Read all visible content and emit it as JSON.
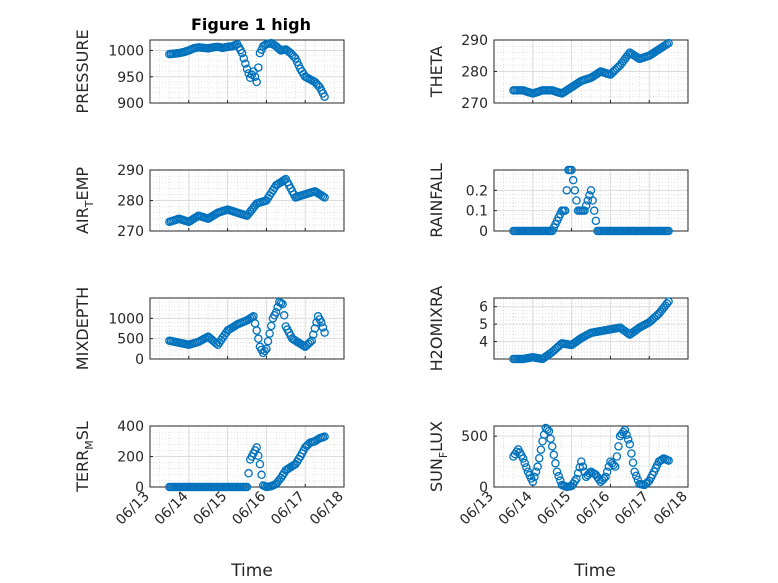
{
  "figure": {
    "title": "Figure 1 high",
    "marker_color": "#0072bd",
    "xlabel": "Time"
  },
  "chart_data": [
    {
      "type": "scatter",
      "ylabel": "PRESSURE",
      "ylim": [
        900,
        1020
      ],
      "yticks": [
        900,
        950,
        1000
      ],
      "xlim": [
        "2017-06-13",
        "2017-06-18"
      ],
      "xticks": [
        "06/13",
        "06/14",
        "06/15",
        "06/16",
        "06/17",
        "06/18"
      ],
      "minor_grid": true,
      "x": [
        "2017-06-13 12:00",
        "2017-06-13 15:00",
        "2017-06-13 18:00",
        "2017-06-13 21:00",
        "2017-06-14 00:00",
        "2017-06-14 03:00",
        "2017-06-14 06:00",
        "2017-06-14 09:00",
        "2017-06-14 12:00",
        "2017-06-14 15:00",
        "2017-06-14 18:00",
        "2017-06-14 21:00",
        "2017-06-15 00:00",
        "2017-06-15 03:00",
        "2017-06-15 06:00",
        "2017-06-15 09:00",
        "2017-06-15 12:00",
        "2017-06-15 14:00",
        "2017-06-15 16:00",
        "2017-06-15 18:00",
        "2017-06-15 20:00",
        "2017-06-15 22:00",
        "2017-06-16 00:00",
        "2017-06-16 03:00",
        "2017-06-16 06:00",
        "2017-06-16 09:00",
        "2017-06-16 12:00",
        "2017-06-16 15:00",
        "2017-06-16 18:00",
        "2017-06-16 21:00",
        "2017-06-17 00:00",
        "2017-06-17 03:00",
        "2017-06-17 06:00",
        "2017-06-17 09:00",
        "2017-06-17 12:00"
      ],
      "y": [
        993,
        994,
        995,
        997,
        1000,
        1004,
        1006,
        1005,
        1004,
        1006,
        1007,
        1005,
        1007,
        1008,
        1012,
        995,
        965,
        948,
        960,
        940,
        995,
        1008,
        1012,
        1014,
        1008,
        1000,
        1002,
        995,
        985,
        965,
        950,
        945,
        940,
        930,
        912
      ]
    },
    {
      "type": "scatter",
      "ylabel": "THETA",
      "ylim": [
        270,
        290
      ],
      "yticks": [
        270,
        280,
        290
      ],
      "xlim": [
        "2017-06-13",
        "2017-06-18"
      ],
      "xticks": [
        "06/13",
        "06/14",
        "06/15",
        "06/16",
        "06/17",
        "06/18"
      ],
      "minor_grid": true,
      "x": [
        "2017-06-13 12:00",
        "2017-06-13 18:00",
        "2017-06-14 00:00",
        "2017-06-14 06:00",
        "2017-06-14 12:00",
        "2017-06-14 18:00",
        "2017-06-15 00:00",
        "2017-06-15 06:00",
        "2017-06-15 12:00",
        "2017-06-15 18:00",
        "2017-06-16 00:00",
        "2017-06-16 06:00",
        "2017-06-16 12:00",
        "2017-06-16 18:00",
        "2017-06-17 00:00",
        "2017-06-17 06:00",
        "2017-06-17 12:00"
      ],
      "y": [
        274,
        274,
        273,
        274,
        274,
        273,
        275,
        277,
        278,
        280,
        279,
        282,
        286,
        284,
        285,
        287,
        289
      ]
    },
    {
      "type": "scatter",
      "ylabel": "AIR_TEMP",
      "ylim": [
        270,
        290
      ],
      "yticks": [
        270,
        280,
        290
      ],
      "xlim": [
        "2017-06-13",
        "2017-06-18"
      ],
      "xticks": [
        "06/13",
        "06/14",
        "06/15",
        "06/16",
        "06/17",
        "06/18"
      ],
      "minor_grid": true,
      "x": [
        "2017-06-13 12:00",
        "2017-06-13 18:00",
        "2017-06-14 00:00",
        "2017-06-14 06:00",
        "2017-06-14 12:00",
        "2017-06-14 18:00",
        "2017-06-15 00:00",
        "2017-06-15 06:00",
        "2017-06-15 12:00",
        "2017-06-15 18:00",
        "2017-06-16 00:00",
        "2017-06-16 06:00",
        "2017-06-16 12:00",
        "2017-06-16 18:00",
        "2017-06-17 00:00",
        "2017-06-17 06:00",
        "2017-06-17 12:00"
      ],
      "y": [
        273,
        274,
        273,
        275,
        274,
        276,
        277,
        276,
        275,
        279,
        280,
        285,
        287,
        281,
        282,
        283,
        281
      ]
    },
    {
      "type": "scatter",
      "ylabel": "RAINFALL",
      "ylim": [
        0,
        0.3
      ],
      "yticks": [
        0,
        0.1,
        0.2
      ],
      "xlim": [
        "2017-06-13",
        "2017-06-18"
      ],
      "xticks": [
        "06/13",
        "06/14",
        "06/15",
        "06/16",
        "06/17",
        "06/18"
      ],
      "minor_grid": true,
      "x": [
        "2017-06-13 12:00",
        "2017-06-14 00:00",
        "2017-06-14 12:00",
        "2017-06-14 18:00",
        "2017-06-14 20:00",
        "2017-06-14 22:00",
        "2017-06-15 00:00",
        "2017-06-15 02:00",
        "2017-06-15 04:00",
        "2017-06-15 08:00",
        "2017-06-15 12:00",
        "2017-06-15 14:00",
        "2017-06-15 16:00",
        "2017-06-16 00:00",
        "2017-06-16 12:00",
        "2017-06-17 00:00",
        "2017-06-17 12:00"
      ],
      "y": [
        0,
        0,
        0,
        0.1,
        0.1,
        0.3,
        0.3,
        0.2,
        0.1,
        0.1,
        0.2,
        0.1,
        0,
        0,
        0,
        0,
        0
      ]
    },
    {
      "type": "scatter",
      "ylabel": "MIXDEPTH",
      "ylim": [
        0,
        1500
      ],
      "yticks": [
        0,
        500,
        1000
      ],
      "xlim": [
        "2017-06-13",
        "2017-06-18"
      ],
      "xticks": [
        "06/13",
        "06/14",
        "06/15",
        "06/16",
        "06/17",
        "06/18"
      ],
      "minor_grid": true,
      "x": [
        "2017-06-13 12:00",
        "2017-06-13 18:00",
        "2017-06-14 00:00",
        "2017-06-14 06:00",
        "2017-06-14 12:00",
        "2017-06-14 18:00",
        "2017-06-15 00:00",
        "2017-06-15 06:00",
        "2017-06-15 12:00",
        "2017-06-15 16:00",
        "2017-06-15 18:00",
        "2017-06-15 20:00",
        "2017-06-15 22:00",
        "2017-06-16 00:00",
        "2017-06-16 04:00",
        "2017-06-16 06:00",
        "2017-06-16 08:00",
        "2017-06-16 10:00",
        "2017-06-16 12:00",
        "2017-06-16 16:00",
        "2017-06-16 20:00",
        "2017-06-17 00:00",
        "2017-06-17 04:00",
        "2017-06-17 08:00",
        "2017-06-17 10:00",
        "2017-06-17 12:00"
      ],
      "y": [
        450,
        400,
        350,
        420,
        550,
        350,
        700,
        850,
        950,
        1050,
        700,
        300,
        150,
        250,
        1000,
        1150,
        1400,
        1350,
        800,
        500,
        400,
        300,
        450,
        1050,
        900,
        650
      ]
    },
    {
      "type": "scatter",
      "ylabel": "H2OMIXRA",
      "ylim": [
        3,
        6.5
      ],
      "yticks": [
        4,
        5,
        6
      ],
      "xlim": [
        "2017-06-13",
        "2017-06-18"
      ],
      "xticks": [
        "06/13",
        "06/14",
        "06/15",
        "06/16",
        "06/17",
        "06/18"
      ],
      "minor_grid": true,
      "x": [
        "2017-06-13 12:00",
        "2017-06-13 18:00",
        "2017-06-14 00:00",
        "2017-06-14 06:00",
        "2017-06-14 12:00",
        "2017-06-14 18:00",
        "2017-06-15 00:00",
        "2017-06-15 06:00",
        "2017-06-15 12:00",
        "2017-06-15 18:00",
        "2017-06-16 00:00",
        "2017-06-16 06:00",
        "2017-06-16 12:00",
        "2017-06-16 18:00",
        "2017-06-17 00:00",
        "2017-06-17 06:00",
        "2017-06-17 12:00"
      ],
      "y": [
        3,
        3,
        3.1,
        3,
        3.4,
        3.9,
        3.8,
        4.2,
        4.5,
        4.6,
        4.7,
        4.8,
        4.4,
        4.8,
        5.1,
        5.6,
        6.3
      ]
    },
    {
      "type": "scatter",
      "ylabel": "TERR_MSL",
      "ylim": [
        0,
        400
      ],
      "yticks": [
        0,
        200,
        400
      ],
      "xlim": [
        "2017-06-13",
        "2017-06-18"
      ],
      "xticks": [
        "06/13",
        "06/14",
        "06/15",
        "06/16",
        "06/17",
        "06/18"
      ],
      "minor_grid": true,
      "x": [
        "2017-06-13 12:00",
        "2017-06-13 18:00",
        "2017-06-14 00:00",
        "2017-06-14 06:00",
        "2017-06-14 12:00",
        "2017-06-14 18:00",
        "2017-06-15 00:00",
        "2017-06-15 06:00",
        "2017-06-15 12:00",
        "2017-06-15 14:00",
        "2017-06-15 16:00",
        "2017-06-15 18:00",
        "2017-06-15 20:00",
        "2017-06-15 22:00",
        "2017-06-16 00:00",
        "2017-06-16 03:00",
        "2017-06-16 06:00",
        "2017-06-16 09:00",
        "2017-06-16 12:00",
        "2017-06-16 15:00",
        "2017-06-16 18:00",
        "2017-06-16 21:00",
        "2017-06-17 00:00",
        "2017-06-17 03:00",
        "2017-06-17 06:00",
        "2017-06-17 09:00",
        "2017-06-17 12:00"
      ],
      "y": [
        0,
        0,
        0,
        0,
        0,
        0,
        0,
        0,
        0,
        180,
        220,
        260,
        150,
        10,
        0,
        5,
        20,
        60,
        110,
        130,
        150,
        200,
        260,
        290,
        300,
        320,
        330
      ]
    },
    {
      "type": "scatter",
      "ylabel": "SUN_FLUX",
      "ylim": [
        0,
        600
      ],
      "yticks": [
        0,
        500
      ],
      "xlim": [
        "2017-06-13",
        "2017-06-18"
      ],
      "xticks": [
        "06/13",
        "06/14",
        "06/15",
        "06/16",
        "06/17",
        "06/18"
      ],
      "minor_grid": true,
      "x": [
        "2017-06-13 12:00",
        "2017-06-13 15:00",
        "2017-06-13 18:00",
        "2017-06-13 21:00",
        "2017-06-14 00:00",
        "2017-06-14 03:00",
        "2017-06-14 06:00",
        "2017-06-14 08:00",
        "2017-06-14 10:00",
        "2017-06-14 12:00",
        "2017-06-14 15:00",
        "2017-06-14 18:00",
        "2017-06-14 21:00",
        "2017-06-15 00:00",
        "2017-06-15 03:00",
        "2017-06-15 06:00",
        "2017-06-15 09:00",
        "2017-06-15 12:00",
        "2017-06-15 15:00",
        "2017-06-15 18:00",
        "2017-06-15 21:00",
        "2017-06-16 00:00",
        "2017-06-16 03:00",
        "2017-06-16 06:00",
        "2017-06-16 09:00",
        "2017-06-16 12:00",
        "2017-06-16 15:00",
        "2017-06-16 18:00",
        "2017-06-16 21:00",
        "2017-06-17 00:00",
        "2017-06-17 03:00",
        "2017-06-17 06:00",
        "2017-06-17 09:00",
        "2017-06-17 12:00"
      ],
      "y": [
        300,
        370,
        280,
        150,
        50,
        200,
        450,
        580,
        550,
        400,
        150,
        20,
        0,
        10,
        80,
        250,
        100,
        150,
        120,
        50,
        100,
        250,
        200,
        500,
        560,
        420,
        150,
        30,
        20,
        60,
        150,
        250,
        280,
        260
      ]
    }
  ]
}
